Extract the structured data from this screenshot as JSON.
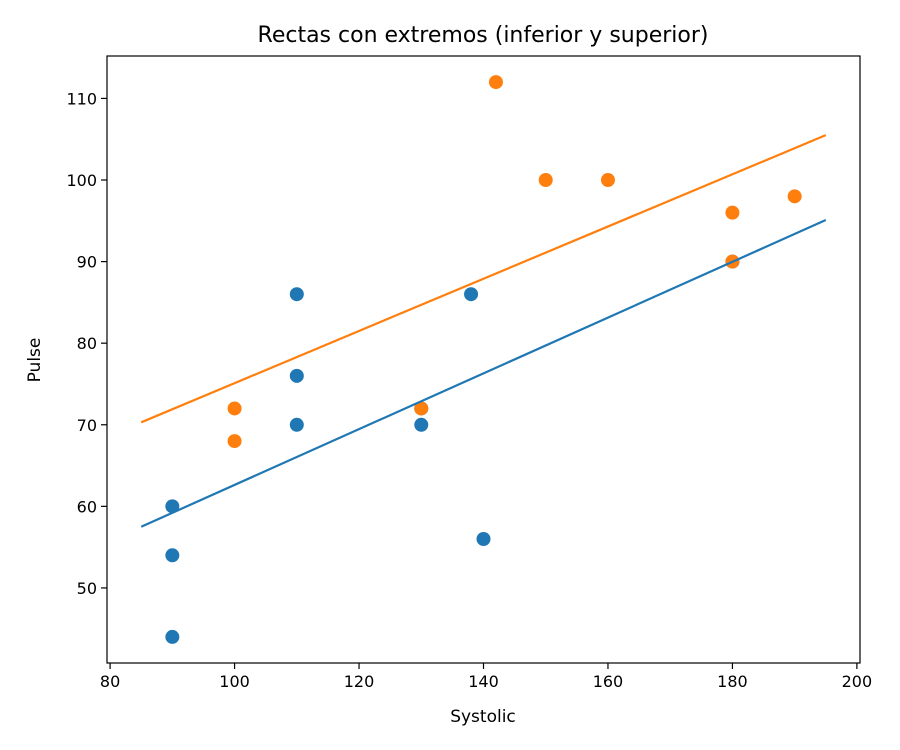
{
  "chart_data": {
    "type": "scatter",
    "title": "Rectas con extremos (inferior y superior)",
    "xlabel": "Systolic",
    "ylabel": "Pulse",
    "xlim": [
      79.5,
      200.5
    ],
    "ylim": [
      40.8,
      115.2
    ],
    "xticks": [
      80,
      100,
      120,
      140,
      160,
      180,
      200
    ],
    "yticks": [
      50,
      60,
      70,
      80,
      90,
      100,
      110
    ],
    "grid": false,
    "series": [
      {
        "color": "#1f77b4",
        "points": [
          [
            90,
            60
          ],
          [
            90,
            54
          ],
          [
            90,
            44
          ],
          [
            110,
            86
          ],
          [
            110,
            76
          ],
          [
            110,
            70
          ],
          [
            130,
            72
          ],
          [
            130,
            70
          ],
          [
            138,
            86
          ],
          [
            140,
            56
          ],
          [
            180,
            90
          ]
        ],
        "line": [
          [
            85,
            57.5
          ],
          [
            195,
            95.1
          ]
        ]
      },
      {
        "color": "#ff7f0e",
        "points": [
          [
            100,
            72
          ],
          [
            100,
            68
          ],
          [
            130,
            72
          ],
          [
            142,
            112
          ],
          [
            150,
            100
          ],
          [
            160,
            100
          ],
          [
            180,
            96
          ],
          [
            180,
            90
          ],
          [
            190,
            98
          ]
        ],
        "line": [
          [
            85,
            70.3
          ],
          [
            195,
            105.5
          ]
        ]
      }
    ]
  }
}
